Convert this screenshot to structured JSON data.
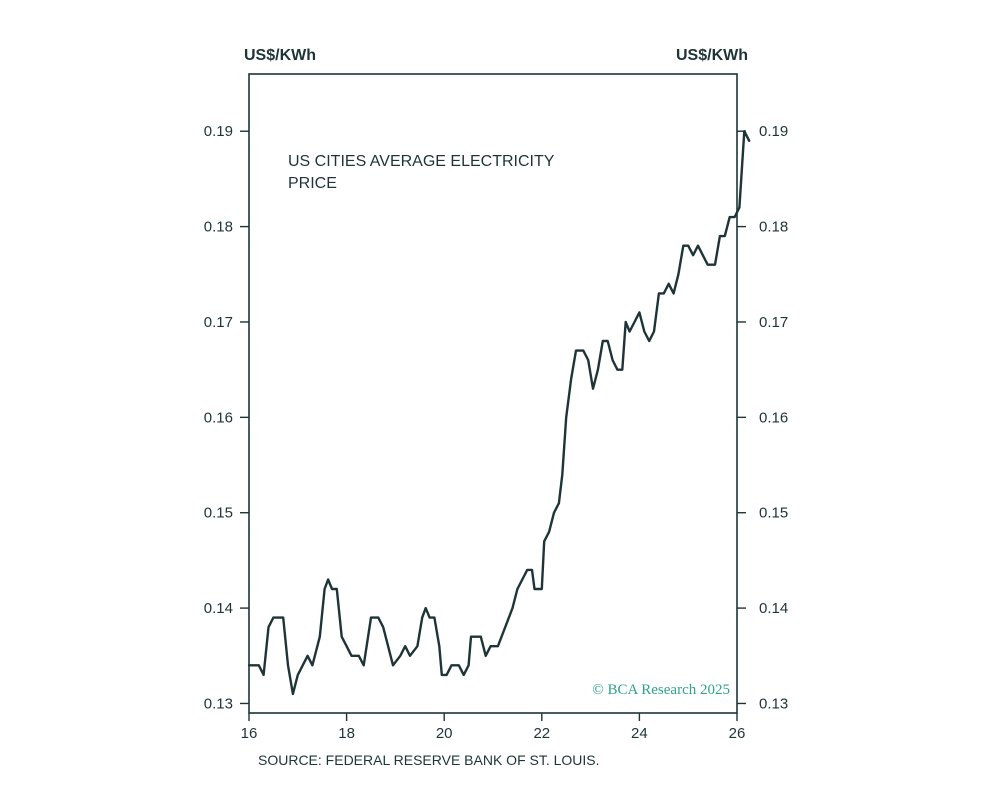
{
  "chart_data": {
    "type": "line",
    "title": "US CITIES AVERAGE ELECTRICITY PRICE",
    "title_lines": [
      "US CITIES AVERAGE ELECTRICITY",
      "PRICE"
    ],
    "left_unit": "US$/KWh",
    "right_unit": "US$/KWh",
    "source": "SOURCE: FEDERAL RESERVE BANK OF ST. LOUIS.",
    "watermark": "© BCA Research 2025",
    "xlim": [
      16,
      26
    ],
    "ylim": [
      0.129,
      0.196
    ],
    "x_ticks": [
      "16",
      "18",
      "20",
      "22",
      "24",
      "26"
    ],
    "y_ticks": [
      "0.13",
      "0.14",
      "0.15",
      "0.16",
      "0.17",
      "0.18",
      "0.19"
    ],
    "grid": false,
    "line_color": "#1e3436",
    "accent_color": "#2fa38a",
    "series": [
      {
        "values": [
          [
            16.0,
            0.134
          ],
          [
            16.2,
            0.134
          ],
          [
            16.3,
            0.133
          ],
          [
            16.4,
            0.138
          ],
          [
            16.5,
            0.139
          ],
          [
            16.7,
            0.139
          ],
          [
            16.8,
            0.134
          ],
          [
            16.9,
            0.131
          ],
          [
            17.0,
            0.133
          ],
          [
            17.2,
            0.135
          ],
          [
            17.3,
            0.134
          ],
          [
            17.45,
            0.137
          ],
          [
            17.55,
            0.142
          ],
          [
            17.62,
            0.143
          ],
          [
            17.7,
            0.142
          ],
          [
            17.8,
            0.142
          ],
          [
            17.9,
            0.137
          ],
          [
            18.0,
            0.136
          ],
          [
            18.1,
            0.135
          ],
          [
            18.25,
            0.135
          ],
          [
            18.35,
            0.134
          ],
          [
            18.5,
            0.139
          ],
          [
            18.65,
            0.139
          ],
          [
            18.75,
            0.138
          ],
          [
            18.85,
            0.136
          ],
          [
            18.95,
            0.134
          ],
          [
            19.1,
            0.135
          ],
          [
            19.2,
            0.136
          ],
          [
            19.3,
            0.135
          ],
          [
            19.45,
            0.136
          ],
          [
            19.55,
            0.139
          ],
          [
            19.62,
            0.14
          ],
          [
            19.7,
            0.139
          ],
          [
            19.8,
            0.139
          ],
          [
            19.9,
            0.136
          ],
          [
            19.95,
            0.133
          ],
          [
            20.05,
            0.133
          ],
          [
            20.15,
            0.134
          ],
          [
            20.3,
            0.134
          ],
          [
            20.4,
            0.133
          ],
          [
            20.5,
            0.134
          ],
          [
            20.55,
            0.137
          ],
          [
            20.75,
            0.137
          ],
          [
            20.85,
            0.135
          ],
          [
            20.95,
            0.136
          ],
          [
            21.1,
            0.136
          ],
          [
            21.25,
            0.138
          ],
          [
            21.4,
            0.14
          ],
          [
            21.5,
            0.142
          ],
          [
            21.6,
            0.143
          ],
          [
            21.7,
            0.144
          ],
          [
            21.8,
            0.144
          ],
          [
            21.85,
            0.142
          ],
          [
            22.0,
            0.142
          ],
          [
            22.05,
            0.147
          ],
          [
            22.15,
            0.148
          ],
          [
            22.25,
            0.15
          ],
          [
            22.35,
            0.151
          ],
          [
            22.42,
            0.154
          ],
          [
            22.5,
            0.16
          ],
          [
            22.6,
            0.164
          ],
          [
            22.7,
            0.167
          ],
          [
            22.85,
            0.167
          ],
          [
            22.95,
            0.166
          ],
          [
            23.05,
            0.163
          ],
          [
            23.15,
            0.165
          ],
          [
            23.25,
            0.168
          ],
          [
            23.35,
            0.168
          ],
          [
            23.45,
            0.166
          ],
          [
            23.55,
            0.165
          ],
          [
            23.65,
            0.165
          ],
          [
            23.72,
            0.17
          ],
          [
            23.8,
            0.169
          ],
          [
            23.9,
            0.17
          ],
          [
            24.0,
            0.171
          ],
          [
            24.1,
            0.169
          ],
          [
            24.2,
            0.168
          ],
          [
            24.3,
            0.169
          ],
          [
            24.4,
            0.173
          ],
          [
            24.5,
            0.173
          ],
          [
            24.6,
            0.174
          ],
          [
            24.7,
            0.173
          ],
          [
            24.8,
            0.175
          ],
          [
            24.9,
            0.178
          ],
          [
            25.0,
            0.178
          ],
          [
            25.1,
            0.177
          ],
          [
            25.2,
            0.178
          ],
          [
            25.3,
            0.177
          ],
          [
            25.4,
            0.176
          ],
          [
            25.55,
            0.176
          ],
          [
            25.65,
            0.179
          ],
          [
            25.75,
            0.179
          ],
          [
            25.85,
            0.181
          ],
          [
            25.95,
            0.181
          ],
          [
            26.05,
            0.182
          ],
          [
            26.15,
            0.19
          ],
          [
            26.25,
            0.189
          ]
        ]
      }
    ]
  }
}
